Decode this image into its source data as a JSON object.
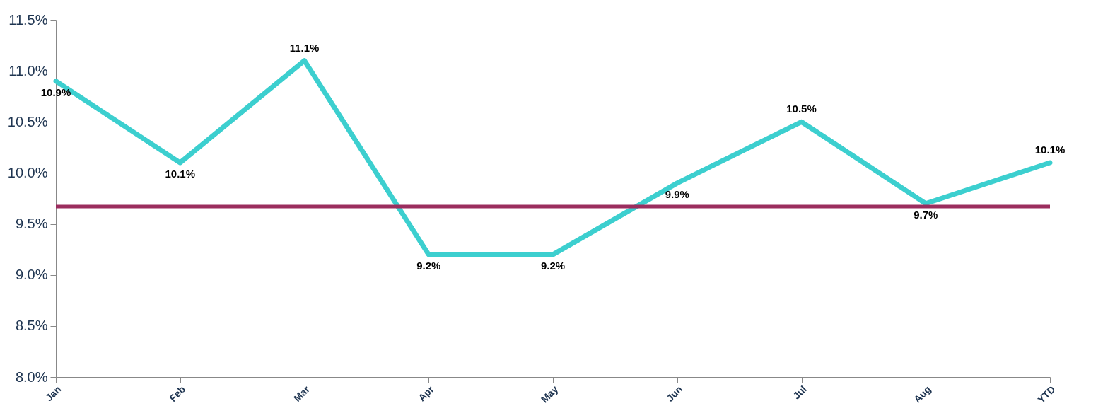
{
  "chart_data": {
    "type": "line",
    "categories": [
      "Jan",
      "Feb",
      "Mar",
      "Apr",
      "May",
      "Jun",
      "Jul",
      "Aug",
      "YTD"
    ],
    "values": [
      10.9,
      10.1,
      11.1,
      9.2,
      9.2,
      9.9,
      10.5,
      9.7,
      10.1
    ],
    "color": "#3ccfcf",
    "value_labels": [
      "10.9%",
      "10.1%",
      "11.1%",
      "9.2%",
      "9.2%",
      "9.9%",
      "10.5%",
      "9.7%",
      "10.1%"
    ],
    "ylim": [
      8,
      11.5
    ],
    "yticks": [
      {
        "value": 8,
        "label": "8.0%"
      },
      {
        "value": 8.5,
        "label": "8.5%"
      },
      {
        "value": 9,
        "label": "9.0%"
      },
      {
        "value": 9.5,
        "label": "9.5%"
      },
      {
        "value": 10,
        "label": "10.0%"
      },
      {
        "value": 10.5,
        "label": "10.5%"
      },
      {
        "value": 11,
        "label": "11.0%"
      },
      {
        "value": 11.5,
        "label": "11.5%"
      }
    ],
    "ref_lines": [
      {
        "axis": "y",
        "value": 9.67,
        "color": "#9b2d5e"
      }
    ]
  }
}
